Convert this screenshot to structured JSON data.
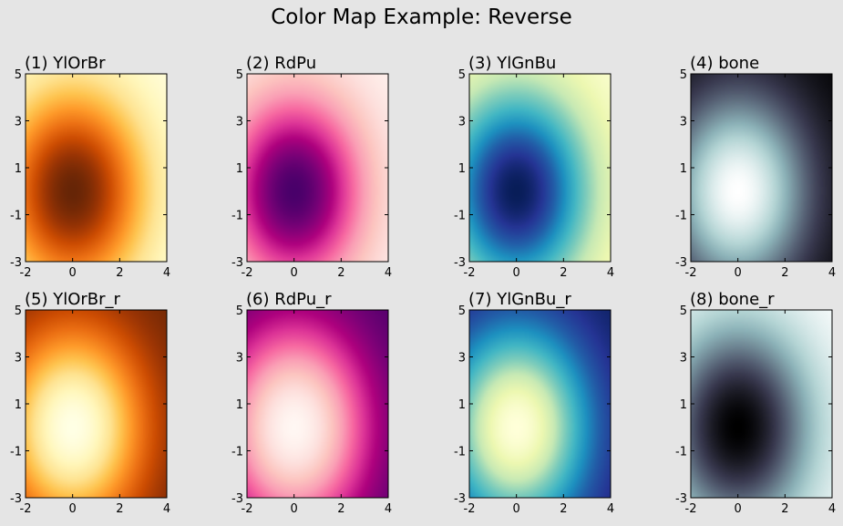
{
  "figure": {
    "title": "Color Map Example: Reverse"
  },
  "chart_data": [
    {
      "type": "heatmap",
      "title": "(1) YlOrBr",
      "colormap": "YlOrBr",
      "xlim": [
        -2,
        4
      ],
      "ylim": [
        -3,
        5
      ],
      "xticks": [
        "-2",
        "0",
        "2",
        "4"
      ],
      "yticks": [
        "5",
        "3",
        "1",
        "-1",
        "-3"
      ],
      "grid": false
    },
    {
      "type": "heatmap",
      "title": "(2) RdPu",
      "colormap": "RdPu",
      "xlim": [
        -2,
        4
      ],
      "ylim": [
        -3,
        5
      ],
      "xticks": [
        "-2",
        "0",
        "2",
        "4"
      ],
      "yticks": [
        "5",
        "3",
        "1",
        "-1",
        "-3"
      ],
      "grid": false
    },
    {
      "type": "heatmap",
      "title": "(3) YlGnBu",
      "colormap": "YlGnBu",
      "xlim": [
        -2,
        4
      ],
      "ylim": [
        -3,
        5
      ],
      "xticks": [
        "-2",
        "0",
        "2",
        "4"
      ],
      "yticks": [
        "5",
        "3",
        "1",
        "-1",
        "-3"
      ],
      "grid": false
    },
    {
      "type": "heatmap",
      "title": "(4) bone",
      "colormap": "bone",
      "xlim": [
        -2,
        4
      ],
      "ylim": [
        -3,
        5
      ],
      "xticks": [
        "-2",
        "0",
        "2",
        "4"
      ],
      "yticks": [
        "5",
        "3",
        "1",
        "-1",
        "-3"
      ],
      "grid": false
    },
    {
      "type": "heatmap",
      "title": "(5) YlOrBr_r",
      "colormap": "YlOrBr_r",
      "xlim": [
        -2,
        4
      ],
      "ylim": [
        -3,
        5
      ],
      "xticks": [
        "-2",
        "0",
        "2",
        "4"
      ],
      "yticks": [
        "5",
        "3",
        "1",
        "-1",
        "-3"
      ],
      "grid": false
    },
    {
      "type": "heatmap",
      "title": "(6) RdPu_r",
      "colormap": "RdPu_r",
      "xlim": [
        -2,
        4
      ],
      "ylim": [
        -3,
        5
      ],
      "xticks": [
        "-2",
        "0",
        "2",
        "4"
      ],
      "yticks": [
        "5",
        "3",
        "1",
        "-1",
        "-3"
      ],
      "grid": false
    },
    {
      "type": "heatmap",
      "title": "(7) YlGnBu_r",
      "colormap": "YlGnBu_r",
      "xlim": [
        -2,
        4
      ],
      "ylim": [
        -3,
        5
      ],
      "xticks": [
        "-2",
        "0",
        "2",
        "4"
      ],
      "yticks": [
        "5",
        "3",
        "1",
        "-1",
        "-3"
      ],
      "grid": false
    },
    {
      "type": "heatmap",
      "title": "(8) bone_r",
      "colormap": "bone_r",
      "xlim": [
        -2,
        4
      ],
      "ylim": [
        -3,
        5
      ],
      "xticks": [
        "-2",
        "0",
        "2",
        "4"
      ],
      "yticks": [
        "5",
        "3",
        "1",
        "-1",
        "-3"
      ],
      "grid": false
    }
  ],
  "colormaps": {
    "YlOrBr": [
      "#ffffe5",
      "#fff7bc",
      "#fee391",
      "#fec44f",
      "#fe9929",
      "#ec7014",
      "#cc4c02",
      "#993404",
      "#662506"
    ],
    "RdPu": [
      "#fff7f3",
      "#fde0dd",
      "#fcc5c0",
      "#fa9fb5",
      "#f768a1",
      "#dd3497",
      "#ae017e",
      "#7a0177",
      "#49006a"
    ],
    "YlGnBu": [
      "#ffffd9",
      "#edf8b1",
      "#c7e9b4",
      "#7fcdbb",
      "#41b6c4",
      "#1d91c0",
      "#225ea8",
      "#253494",
      "#081d58"
    ],
    "bone": [
      "#000000",
      "#1c1c26",
      "#38384e",
      "#545e72",
      "#708895",
      "#8cb2b8",
      "#b3d4d4",
      "#d9eaea",
      "#ffffff"
    ]
  }
}
